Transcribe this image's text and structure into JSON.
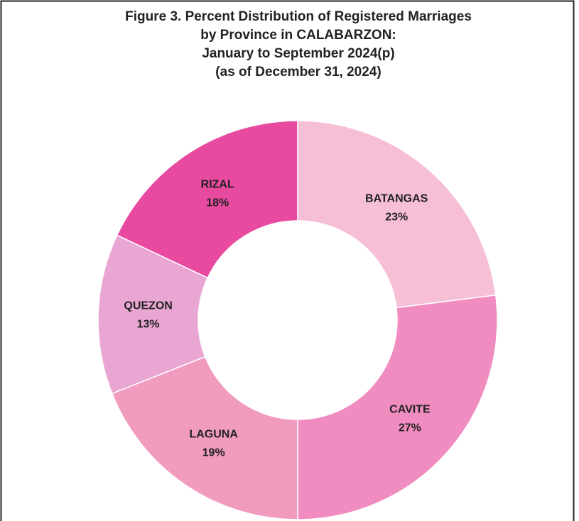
{
  "chart_data": {
    "type": "donut",
    "title": [
      "Figure 3. Percent Distribution of Registered Marriages",
      "by Province in CALABARZON:",
      "January to September 2024(p)",
      "(as of December 31, 2024)"
    ],
    "categories": [
      "BATANGAS",
      "CAVITE",
      "LAGUNA",
      "QUEZON",
      "RIZAL"
    ],
    "values": [
      23,
      27,
      19,
      13,
      18
    ],
    "value_labels": [
      "23%",
      "27%",
      "19%",
      "13%",
      "18%"
    ],
    "colors": [
      "#f7bfd6",
      "#f08cc0",
      "#f19bbf",
      "#e9a6d2",
      "#e74a9f"
    ]
  }
}
